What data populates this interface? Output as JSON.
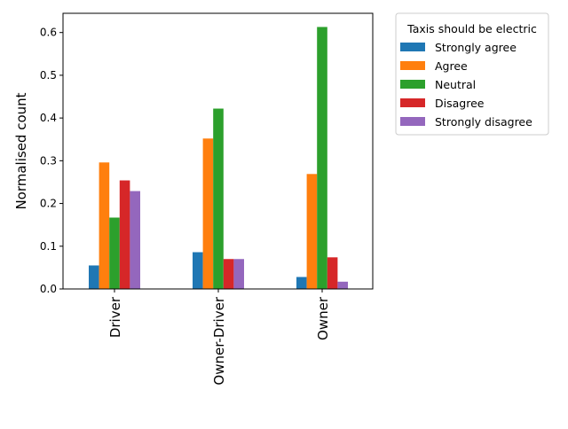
{
  "chart_data": {
    "type": "bar",
    "title": "",
    "xlabel": "",
    "ylabel": "Normalised count",
    "categories": [
      "Driver",
      "Owner-Driver",
      "Owner"
    ],
    "ylim": [
      0,
      0.645
    ],
    "yticks": [
      "0.0",
      "0.1",
      "0.2",
      "0.3",
      "0.4",
      "0.5",
      "0.6"
    ],
    "grid": false,
    "legend": {
      "title": "Taxis should be electric",
      "placement": "outside-right"
    },
    "series": [
      {
        "name": "Strongly agree",
        "color": "#1f77b4",
        "values": [
          0.055,
          0.086,
          0.028
        ]
      },
      {
        "name": "Agree",
        "color": "#ff7f0e",
        "values": [
          0.296,
          0.352,
          0.269
        ]
      },
      {
        "name": "Neutral",
        "color": "#2ca02c",
        "values": [
          0.167,
          0.422,
          0.613
        ]
      },
      {
        "name": "Disagree",
        "color": "#d62728",
        "values": [
          0.254,
          0.07,
          0.074
        ]
      },
      {
        "name": "Strongly disagree",
        "color": "#9467bd",
        "values": [
          0.229,
          0.07,
          0.017
        ]
      }
    ]
  }
}
